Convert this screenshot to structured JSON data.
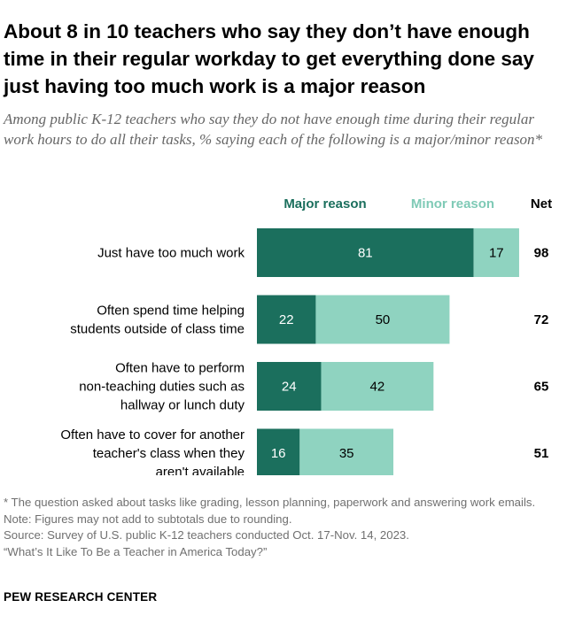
{
  "title": "About 8 in 10 teachers who say they don’t have enough time in their regular workday to get everything done say just having too much work is a major reason",
  "subtitle": "Among public K-12 teachers who say they do not have enough time during their regular work hours to do all their tasks, % saying each of the following is a major/minor reason*",
  "colors": {
    "major": "#1b6f5d",
    "minor": "#8fd3c0",
    "major_text": "#1b6f5d",
    "minor_text": "#7fcab6"
  },
  "chart_data": {
    "type": "bar",
    "orientation": "horizontal",
    "stacked": true,
    "categories": [
      "Just have too much work",
      "Often spend time helping students outside of class time",
      "Often have to perform non-teaching duties such as hallway or lunch duty",
      "Often have to cover for another teacher's class when they aren't available"
    ],
    "category_lines": [
      [
        "Just have too much work"
      ],
      [
        "Often spend time helping",
        "students outside of class time"
      ],
      [
        "Often have to perform",
        "non-teaching duties such as",
        "hallway or lunch duty"
      ],
      [
        "Often have to cover for another",
        "teacher's class when they",
        "aren't available"
      ]
    ],
    "series": [
      {
        "name": "Major reason",
        "values": [
          81,
          22,
          24,
          16
        ]
      },
      {
        "name": "Minor reason",
        "values": [
          17,
          50,
          42,
          35
        ]
      }
    ],
    "net_label": "Net",
    "net": [
      98,
      72,
      65,
      51
    ]
  },
  "footer": {
    "note1": "* The question asked about tasks like grading, lesson planning, paperwork and answering work emails.",
    "note2": "Note: Figures may not add to subtotals due to rounding.",
    "source": "Source: Survey of U.S. public K-12 teachers conducted Oct. 17-Nov. 14, 2023.",
    "report": "“What’s It Like To Be a Teacher in America Today?”",
    "brand": "PEW RESEARCH CENTER"
  }
}
